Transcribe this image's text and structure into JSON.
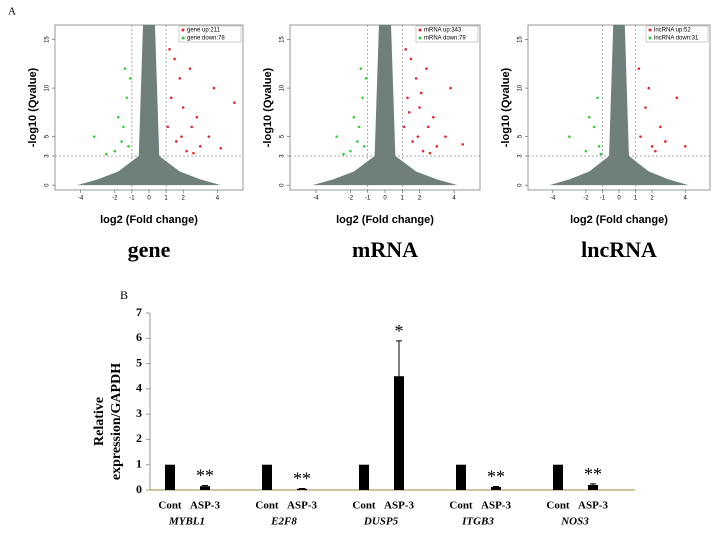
{
  "panel_labels": [
    "A",
    "B"
  ],
  "chart_data": [
    {
      "type": "scatter",
      "title": "gene",
      "xlabel": "log2 (Fold change)",
      "ylabel": "-log10 (Qvalue)",
      "xlim": [
        -5.5,
        5.5
      ],
      "ylim": [
        -0.5,
        16.5
      ],
      "xticks": [
        -4,
        -2,
        -1,
        0,
        1,
        2,
        4
      ],
      "yticks": [
        0,
        3,
        5,
        10,
        15
      ],
      "hline": 3,
      "vlines": [
        -1,
        1
      ],
      "legend": "upper right",
      "series": [
        {
          "name": "gene up:211",
          "color": "#e8262a",
          "x": [
            1.2,
            1.5,
            2,
            2.5,
            3,
            1.8,
            2.2,
            3.5,
            4.2,
            1.3,
            2.8,
            1.6,
            5,
            3.8,
            2.4,
            1.1,
            1.9,
            2.6
          ],
          "values": [
            14,
            13,
            8,
            6,
            4,
            11,
            3.5,
            5,
            3.8,
            9,
            7,
            4.5,
            8.5,
            10,
            12,
            6,
            5,
            3.3
          ]
        },
        {
          "name": "gene down:78",
          "color": "#2fd13a",
          "x": [
            -1.2,
            -1.5,
            -2,
            -3.2,
            -1.3,
            -1.8,
            -1.1,
            -2.5,
            -1.4,
            -1.6
          ],
          "values": [
            4,
            6,
            3.5,
            5,
            9,
            7,
            11,
            3.2,
            12,
            4.5
          ]
        }
      ]
    },
    {
      "type": "scatter",
      "title": "mRNA",
      "xlabel": "log2 (Fold change)",
      "ylabel": "-log10 (Qvalue)",
      "xlim": [
        -5.5,
        5.5
      ],
      "ylim": [
        -0.5,
        16.5
      ],
      "xticks": [
        -4,
        -2,
        -1,
        0,
        1,
        2,
        4
      ],
      "yticks": [
        0,
        3,
        5,
        10,
        15
      ],
      "hline": 3,
      "vlines": [
        -1,
        1
      ],
      "legend": "upper right",
      "series": [
        {
          "name": "mRNA up:343",
          "color": "#e8262a",
          "x": [
            1.2,
            1.5,
            2,
            2.5,
            3,
            1.8,
            2.2,
            3.5,
            4.5,
            1.3,
            2.8,
            1.6,
            3.8,
            2.4,
            1.1,
            1.9,
            2.6,
            1.4,
            2.1
          ],
          "values": [
            14,
            13,
            8,
            6,
            4,
            11,
            3.5,
            5,
            4.2,
            9,
            7,
            4.5,
            10,
            12,
            6,
            5,
            3.3,
            7.5,
            9.5
          ]
        },
        {
          "name": "mRNA down:79",
          "color": "#2fd13a",
          "x": [
            -1.2,
            -1.5,
            -2,
            -2.8,
            -1.3,
            -1.8,
            -1.1,
            -2.4,
            -1.4,
            -1.6
          ],
          "values": [
            4,
            6,
            3.5,
            5,
            9,
            7,
            11,
            3.2,
            12,
            4.5
          ]
        }
      ]
    },
    {
      "type": "scatter",
      "title": "lncRNA",
      "xlabel": "log2 (Fold change)",
      "ylabel": "-log10 (Qvalue)",
      "xlim": [
        -5.5,
        5.5
      ],
      "ylim": [
        -0.5,
        16.5
      ],
      "xticks": [
        -4,
        -2,
        -1,
        0,
        1,
        2,
        4
      ],
      "yticks": [
        0,
        3,
        5,
        10,
        15
      ],
      "hline": 3,
      "vlines": [
        -1,
        1
      ],
      "legend": "upper right",
      "series": [
        {
          "name": "lncRNA up:52",
          "color": "#e8262a",
          "x": [
            1.3,
            1.6,
            2,
            2.5,
            3.5,
            1.8,
            2.2,
            4,
            1.2,
            2.8
          ],
          "values": [
            5,
            8,
            4,
            6,
            9,
            10,
            3.5,
            4,
            12,
            4.5
          ]
        },
        {
          "name": "lncRNA down:31",
          "color": "#2fd13a",
          "x": [
            -1.2,
            -1.5,
            -2,
            -3,
            -1.3,
            -1.8,
            -1.1
          ],
          "values": [
            4,
            6,
            3.5,
            5,
            9,
            7,
            3.2
          ]
        }
      ]
    },
    {
      "type": "bar",
      "ylabel": "Relative expression/GAPDH",
      "ylim": [
        0,
        7
      ],
      "yticks": [
        0,
        1,
        2,
        3,
        4,
        5,
        6,
        7
      ],
      "categories": [
        "MYBL1",
        "E2F8",
        "DUSP5",
        "ITGB3",
        "NOS3"
      ],
      "series": [
        {
          "name": "Cont",
          "color": "#000000",
          "values": [
            1,
            1,
            1,
            1,
            1
          ]
        },
        {
          "name": "ASP-3",
          "color": "#000000",
          "values": [
            0.15,
            0.05,
            4.5,
            0.12,
            0.2
          ],
          "errors": [
            0.03,
            0.01,
            1.4,
            0.02,
            0.04
          ]
        }
      ],
      "annotations": [
        "**",
        "**",
        "*",
        "**",
        "**"
      ]
    }
  ]
}
